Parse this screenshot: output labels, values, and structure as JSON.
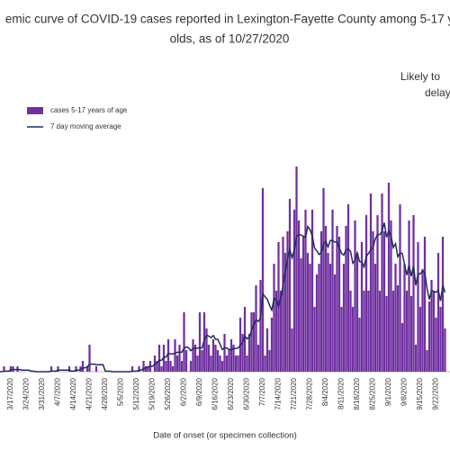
{
  "chart_data": {
    "type": "bar",
    "title_lines": [
      "emic curve of COVID-19 cases reported in Lexington-Fayette County among 5-17 y",
      "olds, as of 10/27/2020"
    ],
    "annotation_lines": [
      "Likely to",
      "delay"
    ],
    "x_label": "Date of onset (or specimen collection)",
    "ylim": [
      0,
      40
    ],
    "grid": false,
    "legend": "top-left",
    "categories": [
      null,
      null,
      null,
      null,
      null,
      null,
      "3/17/2020",
      null,
      null,
      null,
      null,
      null,
      null,
      "3/24/2020",
      null,
      null,
      null,
      null,
      null,
      null,
      "3/31/2020",
      null,
      null,
      null,
      null,
      null,
      null,
      "4/7/2020",
      null,
      null,
      null,
      null,
      null,
      null,
      "4/14/2020",
      null,
      null,
      null,
      null,
      null,
      null,
      "4/21/2020",
      null,
      null,
      null,
      null,
      null,
      null,
      "4/28/2020",
      null,
      null,
      null,
      null,
      null,
      null,
      "5/5/2020",
      null,
      null,
      null,
      null,
      null,
      null,
      "5/12/2020",
      null,
      null,
      null,
      null,
      null,
      null,
      "5/19/2020",
      null,
      null,
      null,
      null,
      null,
      null,
      "5/26/2020",
      null,
      null,
      null,
      null,
      null,
      null,
      "6/2/2020",
      null,
      null,
      null,
      null,
      null,
      null,
      "6/9/2020",
      null,
      null,
      null,
      null,
      null,
      null,
      "6/16/2020",
      null,
      null,
      null,
      null,
      null,
      null,
      "6/23/2020",
      null,
      null,
      null,
      null,
      null,
      null,
      "6/30/2020",
      null,
      null,
      null,
      null,
      null,
      null,
      "7/7/2020",
      null,
      null,
      null,
      null,
      null,
      null,
      "7/14/2020",
      null,
      null,
      null,
      null,
      null,
      null,
      "7/21/2020",
      null,
      null,
      null,
      null,
      null,
      null,
      "7/28/2020",
      null,
      null,
      null,
      null,
      null,
      null,
      "8/4/2020",
      null,
      null,
      null,
      null,
      null,
      null,
      "8/11/2020",
      null,
      null,
      null,
      null,
      null,
      null,
      "8/18/2020",
      null,
      null,
      null,
      null,
      null,
      null,
      "8/25/2020",
      null,
      null,
      null,
      null,
      null,
      null,
      "9/1/2020",
      null,
      null,
      null,
      null,
      null,
      null,
      "9/8/2020",
      null,
      null,
      null,
      null,
      null,
      null,
      "9/15/2020",
      null,
      null,
      null,
      null,
      null,
      null,
      "9/22/2020",
      null,
      null,
      null,
      null
    ],
    "series": [
      {
        "name": "cases 5-17 years of age",
        "type": "bar",
        "color": "#7030a0",
        "values": [
          0,
          0,
          0,
          1,
          0,
          0,
          1,
          1,
          0,
          1,
          0,
          0,
          0,
          0,
          0,
          0,
          0,
          0,
          0,
          0,
          0,
          0,
          0,
          0,
          1,
          0,
          0,
          1,
          0,
          0,
          0,
          0,
          1,
          0,
          0,
          1,
          0,
          1,
          2,
          0,
          1,
          5,
          0,
          0,
          1,
          0,
          0,
          0,
          0,
          0,
          0,
          0,
          0,
          0,
          0,
          0,
          0,
          0,
          0,
          0,
          1,
          0,
          0,
          1,
          0,
          2,
          1,
          1,
          2,
          0,
          3,
          2,
          5,
          1,
          5,
          2,
          6,
          2,
          1,
          6,
          3,
          5,
          2,
          11,
          4,
          0,
          2,
          6,
          5,
          3,
          11,
          4,
          11,
          8,
          5,
          3,
          6,
          5,
          4,
          3,
          2,
          7,
          3,
          4,
          6,
          5,
          3,
          3,
          10,
          7,
          12,
          3,
          7,
          11,
          11,
          16,
          5,
          17,
          34,
          3,
          8,
          4,
          10,
          20,
          15,
          24,
          15,
          25,
          22,
          26,
          32,
          8,
          30,
          38,
          28,
          21,
          25,
          30,
          22,
          20,
          30,
          12,
          18,
          20,
          26,
          34,
          27,
          22,
          20,
          30,
          18,
          27,
          25,
          12,
          20,
          27,
          31,
          15,
          12,
          28,
          22,
          10,
          24,
          15,
          29,
          15,
          33,
          26,
          20,
          29,
          15,
          33,
          26,
          14,
          35,
          28,
          15,
          20,
          16,
          31,
          9,
          20,
          15,
          28,
          14,
          29,
          5,
          24,
          12,
          19,
          25,
          4,
          13,
          17,
          15,
          10,
          22,
          12,
          25,
          8
        ]
      },
      {
        "name": "7 day moving average",
        "type": "line",
        "color": "#1f2d5c",
        "values": [
          0,
          0,
          0,
          0.1,
          0.1,
          0.1,
          0.3,
          0.4,
          0.4,
          0.4,
          0.4,
          0.3,
          0.3,
          0.3,
          0.3,
          0.1,
          0.1,
          0,
          0,
          0,
          0,
          0,
          0,
          0,
          0.1,
          0.1,
          0.1,
          0.3,
          0.3,
          0.3,
          0.3,
          0.3,
          0.3,
          0.1,
          0.1,
          0.3,
          0.3,
          0.4,
          0.7,
          0.7,
          0.9,
          1.4,
          1.4,
          1.4,
          1.3,
          1.3,
          1.3,
          1.3,
          0.1,
          0.1,
          0.1,
          0,
          0,
          0,
          0,
          0,
          0,
          0,
          0,
          0,
          0.1,
          0.1,
          0.1,
          0.3,
          0.3,
          0.6,
          0.7,
          0.9,
          1,
          1,
          1.4,
          1.7,
          2.1,
          2.1,
          2.7,
          2.7,
          3.4,
          3.3,
          3.3,
          3.4,
          3.6,
          3.6,
          3.6,
          4.3,
          4.6,
          4.4,
          3.9,
          4.3,
          4.3,
          4.4,
          4.4,
          4.4,
          5.9,
          6.7,
          6.6,
          6.3,
          6.7,
          6,
          6,
          5.1,
          4.1,
          4.4,
          4.4,
          4.1,
          4.1,
          4.3,
          4.3,
          4.4,
          4.9,
          5.4,
          6.6,
          6.1,
          6.4,
          7.6,
          8.7,
          9.6,
          9.3,
          10,
          14.4,
          13.9,
          13.4,
          12.3,
          11.4,
          13.6,
          13.3,
          12,
          13.7,
          16,
          18.6,
          20.9,
          22.6,
          21.1,
          22.6,
          25,
          25.4,
          25.3,
          25.1,
          24.9,
          26.9,
          26.3,
          25.1,
          22.9,
          22.4,
          21.7,
          22.1,
          23.7,
          24.1,
          23.1,
          24.3,
          24.3,
          24,
          24.1,
          22.9,
          21.9,
          21.6,
          22.6,
          22.7,
          22.3,
          20.1,
          20.6,
          22,
          20.4,
          20.3,
          19.4,
          21.4,
          21.9,
          22.6,
          23.1,
          24.6,
          25.4,
          25.4,
          26,
          27.6,
          24.9,
          26.1,
          25.1,
          23,
          23.7,
          21.3,
          22,
          21.9,
          19.9,
          17.9,
          19.7,
          17.7,
          19.6,
          16,
          18.1,
          18.1,
          18.7,
          18.3,
          15.4,
          13.4,
          15,
          14.9,
          14.7,
          15.1,
          13.1,
          16,
          14.7
        ]
      }
    ]
  }
}
